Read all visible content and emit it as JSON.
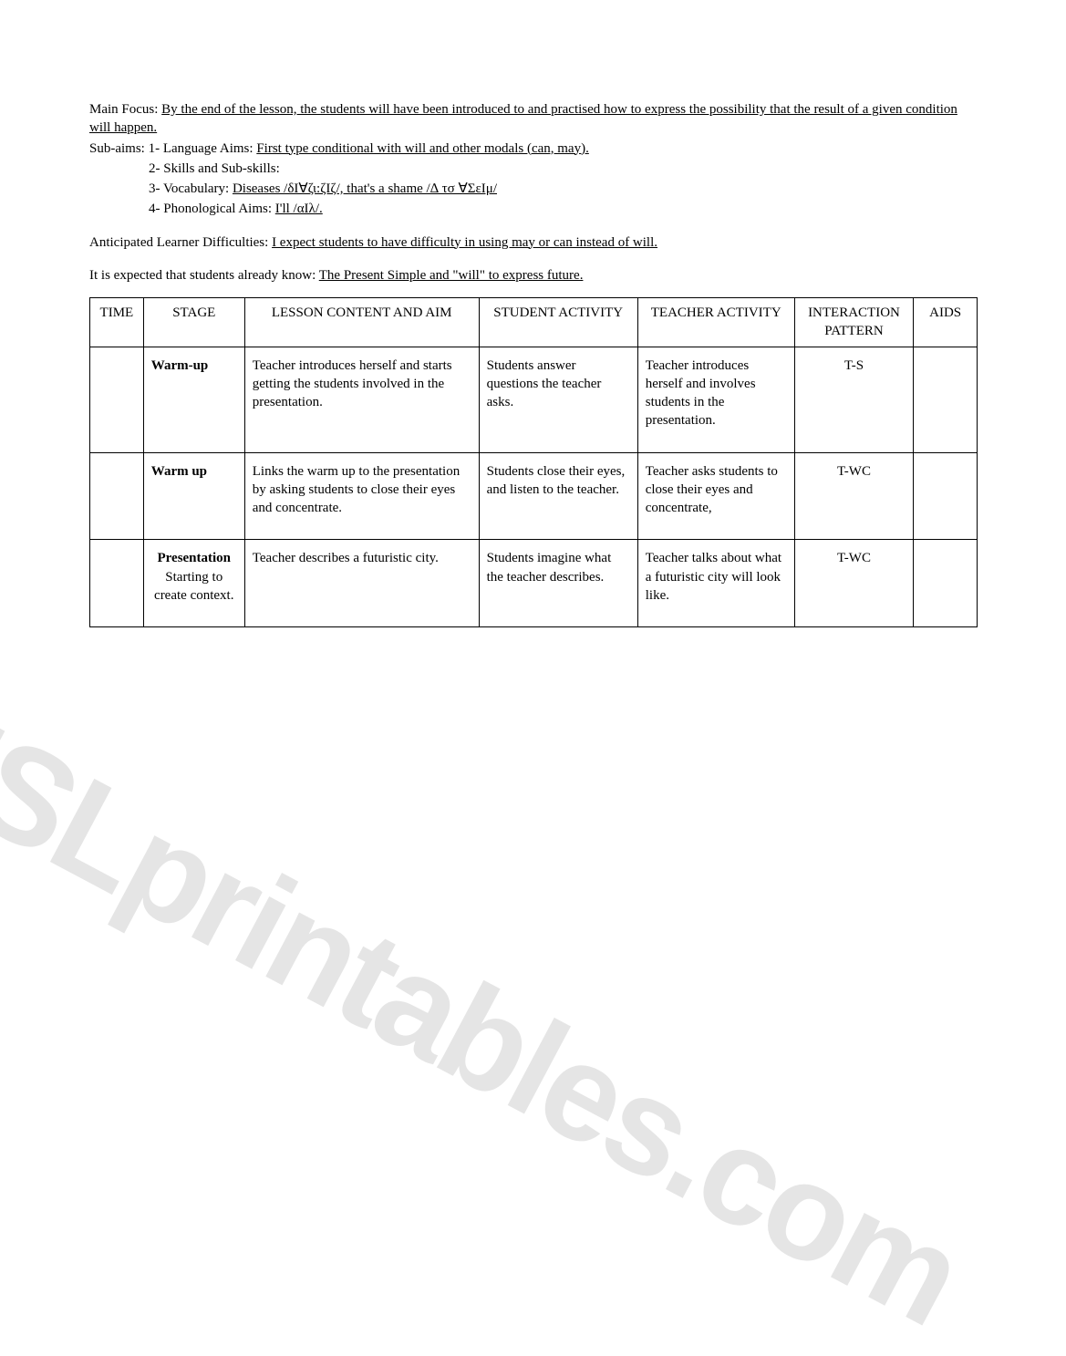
{
  "header": {
    "main_focus_label": "Main Focus: ",
    "main_focus_text": "By the end of the lesson, the students will have been introduced to and practised how to express the possibility that the result of a given condition will happen.",
    "subaims_label": "Sub-aims: 1- Language Aims: ",
    "subaims_text": "First type conditional with will and other modals (can, may).",
    "skills_line": "2- Skills and Sub-skills:",
    "vocab_label": "3- Vocabulary: ",
    "vocab_text": "Diseases /δΙ∀ζι:ζΙζ/, that's a shame /∆ τσ ∀ΣεΙμ/",
    "phon_label": "4- Phonological Aims: ",
    "phon_text": "I'll /αΙλ/.",
    "ald_label": "Anticipated Learner Difficulties: ",
    "ald_text": "I expect students to have difficulty in using may or can instead of will.",
    "prior_label": "It is expected that students already know: ",
    "prior_text": "The Present Simple and \"will\" to express future."
  },
  "table": {
    "columns": [
      "TIME",
      "STAGE",
      "LESSON CONTENT AND AIM",
      "STUDENT ACTIVITY",
      "TEACHER ACTIVITY",
      "INTERACTION PATTERN",
      "AIDS"
    ],
    "rows": [
      {
        "time": "",
        "stage_bold": "Warm-up",
        "stage_rest": "",
        "lesson": "Teacher introduces herself and starts getting the students involved in the presentation.",
        "student": "Students answer questions the teacher asks.",
        "teacher": "Teacher introduces herself and involves students in the presentation.",
        "interaction": "T-S",
        "aids": ""
      },
      {
        "time": "",
        "stage_bold": "Warm up",
        "stage_rest": "",
        "lesson": "Links the warm up to the presentation by asking students to close their eyes and concentrate.",
        "student": "Students close their eyes, and listen to the teacher.",
        "teacher": "Teacher asks students to close their eyes and concentrate,",
        "interaction": "T-WC",
        "aids": ""
      },
      {
        "time": "",
        "stage_bold": "Presentation",
        "stage_rest": " Starting to create context.",
        "lesson": "Teacher describes a futuristic city.",
        "student": "Students imagine what the teacher describes.",
        "teacher": "Teacher talks about what a futuristic city will look like.",
        "interaction": "T-WC",
        "aids": ""
      }
    ]
  },
  "watermark": "ESLprintables.com"
}
